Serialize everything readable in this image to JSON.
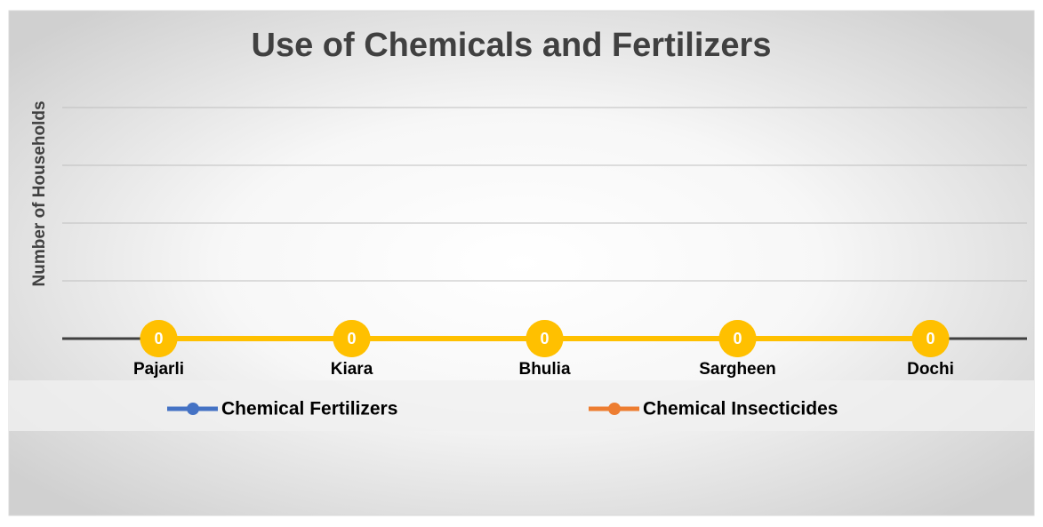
{
  "chart_data": {
    "type": "line",
    "title": "Use of Chemicals and Fertilizers",
    "y_label": "Number of Households",
    "categories": [
      "Pajarli",
      "Kiara",
      "Bhulia",
      "Sargheen",
      "Dochi"
    ],
    "series": [
      {
        "name": "Chemical Fertilizers",
        "color": "#4472c4",
        "values": [
          0,
          0,
          0,
          0,
          0
        ]
      },
      {
        "name": "Chemical Insecticides",
        "color": "#ed7d31",
        "values": [
          0,
          0,
          0,
          0,
          0
        ]
      }
    ],
    "line_color": "#ffc000",
    "ylim": [
      0,
      5
    ],
    "yticks": [
      0,
      1,
      2,
      3,
      4
    ],
    "grid": true,
    "legend": "bottom"
  }
}
